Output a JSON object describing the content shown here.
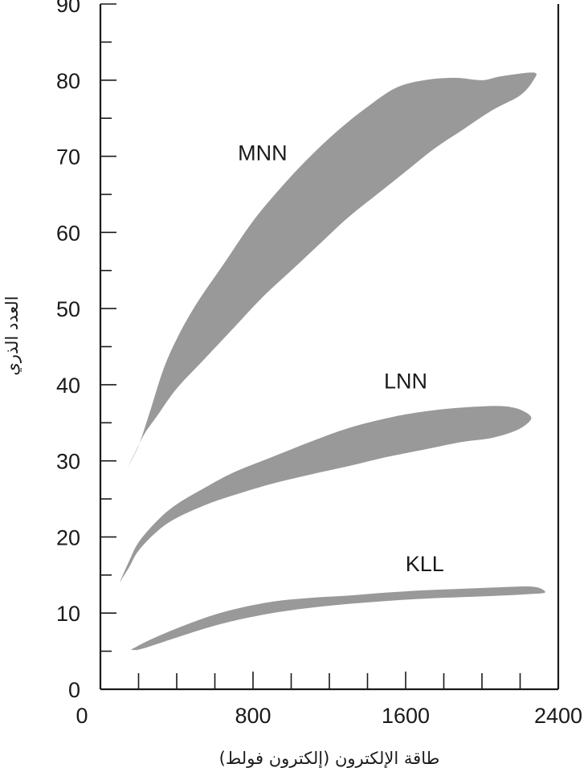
{
  "chart_data": {
    "type": "area",
    "xlabel": "طاقة الإلكترون (إلكترون فولط)",
    "ylabel": "العدد الذري",
    "xlim": [
      0,
      2400
    ],
    "ylim": [
      0,
      90
    ],
    "x_ticks": [
      0,
      800,
      1600,
      2400
    ],
    "x_minor_step": 200,
    "y_ticks": [
      0,
      10,
      20,
      30,
      40,
      50,
      60,
      70,
      80,
      90
    ],
    "y_minor_step": 5,
    "grid": false,
    "fill_color": "#999999",
    "series": [
      {
        "name": "MNN",
        "label_at": [
          850,
          69.5
        ],
        "outline": [
          [
            140,
            29
          ],
          [
            200,
            32
          ],
          [
            260,
            36.5
          ],
          [
            330,
            42
          ],
          [
            400,
            46
          ],
          [
            500,
            50.5
          ],
          [
            650,
            56
          ],
          [
            800,
            61.5
          ],
          [
            950,
            66
          ],
          [
            1100,
            70
          ],
          [
            1250,
            73.5
          ],
          [
            1400,
            76.5
          ],
          [
            1550,
            79
          ],
          [
            1700,
            80
          ],
          [
            1860,
            80.3
          ],
          [
            2000,
            80
          ],
          [
            2100,
            80.5
          ],
          [
            2270,
            81
          ],
          [
            2270,
            80
          ],
          [
            2200,
            78
          ],
          [
            2050,
            76
          ],
          [
            1900,
            73.5
          ],
          [
            1750,
            71
          ],
          [
            1600,
            68
          ],
          [
            1450,
            65
          ],
          [
            1300,
            62
          ],
          [
            1150,
            58.5
          ],
          [
            1000,
            55
          ],
          [
            850,
            51.5
          ],
          [
            700,
            47.5
          ],
          [
            550,
            43.5
          ],
          [
            400,
            39.5
          ],
          [
            300,
            36
          ],
          [
            230,
            33.5
          ],
          [
            180,
            31
          ],
          [
            140,
            29
          ]
        ]
      },
      {
        "name": "LNN",
        "label_at": [
          1600,
          39.5
        ],
        "outline": [
          [
            100,
            14
          ],
          [
            150,
            16.8
          ],
          [
            200,
            19.3
          ],
          [
            300,
            22.2
          ],
          [
            400,
            24.3
          ],
          [
            550,
            26.5
          ],
          [
            700,
            28.5
          ],
          [
            900,
            30.5
          ],
          [
            1100,
            32.5
          ],
          [
            1300,
            34.3
          ],
          [
            1500,
            35.6
          ],
          [
            1700,
            36.5
          ],
          [
            1900,
            37
          ],
          [
            2080,
            37.2
          ],
          [
            2180,
            36.9
          ],
          [
            2250,
            36
          ],
          [
            2250,
            35.2
          ],
          [
            2180,
            34
          ],
          [
            2050,
            33
          ],
          [
            1900,
            32.5
          ],
          [
            1700,
            31.5
          ],
          [
            1500,
            30.5
          ],
          [
            1300,
            29.3
          ],
          [
            1100,
            28.2
          ],
          [
            900,
            27
          ],
          [
            700,
            25.5
          ],
          [
            550,
            24.2
          ],
          [
            400,
            22.5
          ],
          [
            300,
            20.8
          ],
          [
            200,
            18.2
          ],
          [
            150,
            16
          ],
          [
            100,
            14
          ]
        ]
      },
      {
        "name": "KLL",
        "label_at": [
          1700,
          15.5
        ],
        "outline": [
          [
            160,
            5.2
          ],
          [
            260,
            6.5
          ],
          [
            400,
            8
          ],
          [
            550,
            9.4
          ],
          [
            700,
            10.5
          ],
          [
            900,
            11.5
          ],
          [
            1100,
            12
          ],
          [
            1300,
            12.3
          ],
          [
            1500,
            12.7
          ],
          [
            1700,
            13
          ],
          [
            1900,
            13.2
          ],
          [
            2100,
            13.4
          ],
          [
            2240,
            13.5
          ],
          [
            2300,
            13.3
          ],
          [
            2330,
            12.7
          ],
          [
            2250,
            12.5
          ],
          [
            2100,
            12.3
          ],
          [
            1900,
            12.1
          ],
          [
            1700,
            11.9
          ],
          [
            1500,
            11.6
          ],
          [
            1300,
            11.2
          ],
          [
            1100,
            10.7
          ],
          [
            900,
            10
          ],
          [
            700,
            9
          ],
          [
            550,
            8
          ],
          [
            400,
            6.8
          ],
          [
            280,
            5.8
          ],
          [
            200,
            5.2
          ],
          [
            160,
            5.2
          ]
        ]
      }
    ]
  }
}
